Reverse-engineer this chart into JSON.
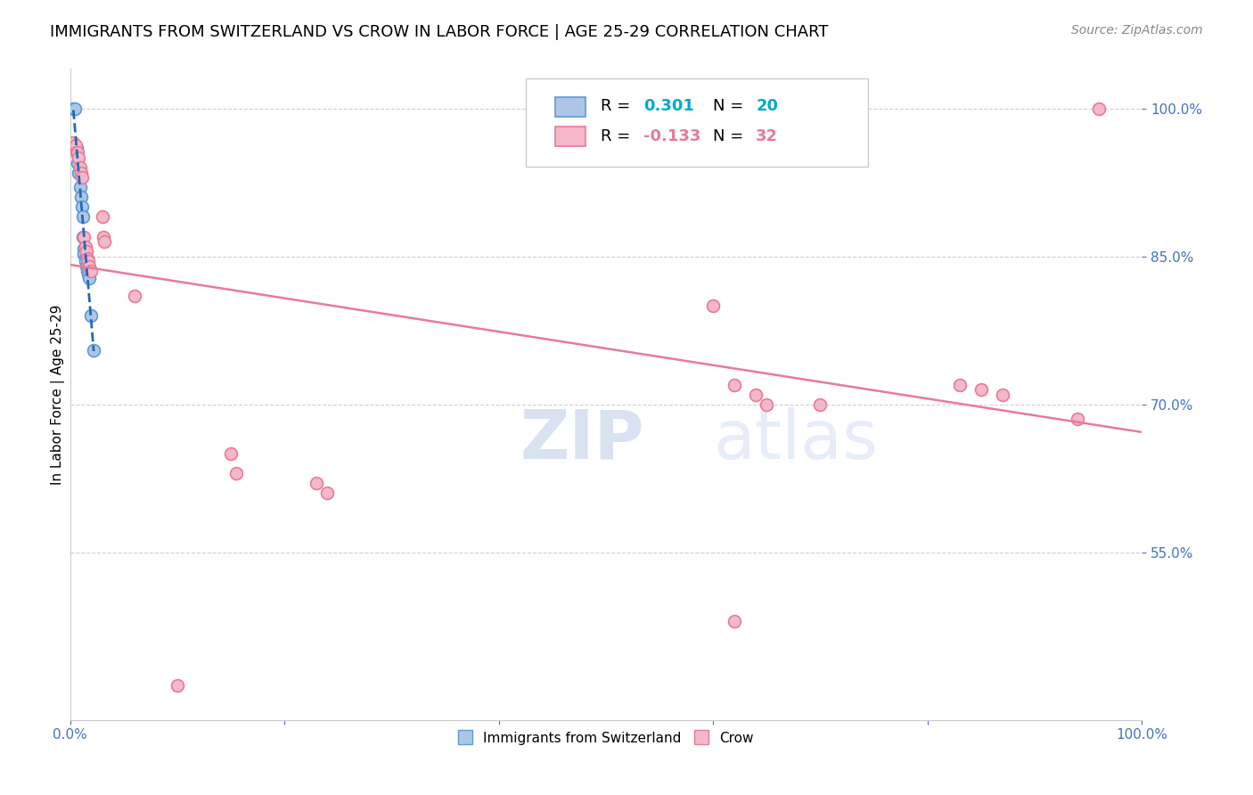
{
  "title": "IMMIGRANTS FROM SWITZERLAND VS CROW IN LABOR FORCE | AGE 25-29 CORRELATION CHART",
  "source": "Source: ZipAtlas.com",
  "ylabel": "In Labor Force | Age 25-29",
  "watermark_zip": "ZIP",
  "watermark_atlas": "atlas",
  "xlim": [
    0.0,
    1.0
  ],
  "ylim": [
    0.38,
    1.04
  ],
  "yticks": [
    0.55,
    0.7,
    0.85,
    1.0
  ],
  "ytick_labels": [
    "55.0%",
    "70.0%",
    "85.0%",
    "100.0%"
  ],
  "xticks": [
    0.0,
    0.2,
    0.4,
    0.6,
    0.8,
    1.0
  ],
  "xtick_labels": [
    "0.0%",
    "",
    "",
    "",
    "",
    "100.0%"
  ],
  "blue_scatter_x": [
    0.003,
    0.004,
    0.006,
    0.007,
    0.008,
    0.009,
    0.01,
    0.011,
    0.012,
    0.012,
    0.013,
    0.013,
    0.014,
    0.014,
    0.015,
    0.016,
    0.017,
    0.018,
    0.019,
    0.022
  ],
  "blue_scatter_y": [
    1.0,
    1.0,
    0.96,
    0.945,
    0.935,
    0.92,
    0.91,
    0.9,
    0.89,
    0.87,
    0.858,
    0.852,
    0.848,
    0.845,
    0.84,
    0.835,
    0.832,
    0.828,
    0.79,
    0.755
  ],
  "pink_scatter_x": [
    0.003,
    0.005,
    0.006,
    0.007,
    0.008,
    0.009,
    0.01,
    0.011,
    0.013,
    0.014,
    0.015,
    0.016,
    0.017,
    0.018,
    0.019,
    0.03,
    0.031,
    0.032,
    0.06,
    0.15,
    0.155,
    0.23,
    0.24,
    0.6,
    0.62,
    0.64,
    0.65,
    0.7,
    0.83,
    0.85,
    0.87,
    0.94
  ],
  "pink_scatter_y": [
    0.965,
    0.963,
    0.955,
    0.955,
    0.95,
    0.94,
    0.935,
    0.93,
    0.87,
    0.86,
    0.855,
    0.848,
    0.845,
    0.84,
    0.835,
    0.89,
    0.87,
    0.865,
    0.81,
    0.65,
    0.63,
    0.62,
    0.61,
    0.8,
    0.72,
    0.71,
    0.7,
    0.7,
    0.72,
    0.715,
    0.71,
    0.685
  ],
  "pink_scatter_far_x": [
    0.96
  ],
  "pink_scatter_far_y": [
    1.0
  ],
  "pink_scatter_low_x": [
    0.62
  ],
  "pink_scatter_low_y": [
    0.48
  ],
  "pink_scatter_vlow_x": [
    0.1
  ],
  "pink_scatter_vlow_y": [
    0.415
  ],
  "blue_color": "#adc6e8",
  "blue_edge": "#5b9bd5",
  "pink_color": "#f4b8c8",
  "pink_edge": "#e87a9a",
  "blue_line_color": "#2468b4",
  "pink_line_color": "#e87a9a",
  "marker_size": 100,
  "background_color": "#ffffff",
  "grid_color": "#d0d0d0",
  "title_fontsize": 13,
  "axis_label_fontsize": 11,
  "tick_fontsize": 11,
  "tick_color": "#4472c4",
  "source_fontsize": 10,
  "legend_value_color_blue": "#00aacc",
  "legend_value_color_pink": "#e87a9a"
}
